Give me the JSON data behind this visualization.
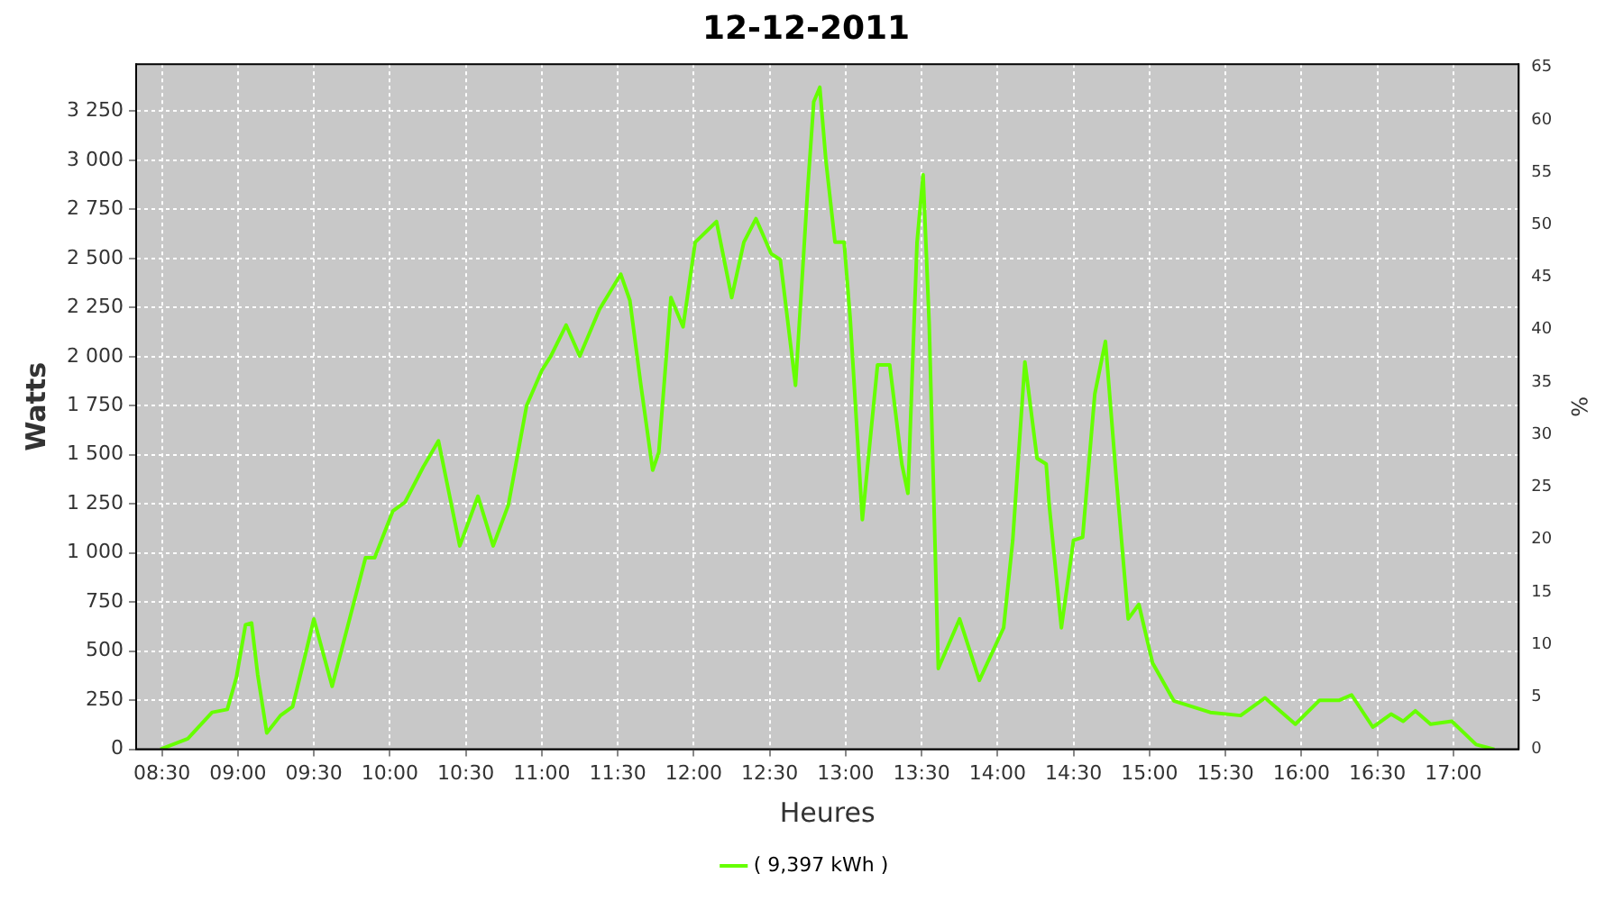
{
  "chart_data": {
    "type": "line",
    "title": "12-12-2011",
    "xlabel": "Heures",
    "ylabel": "Watts",
    "y2label": "%",
    "xlim": [
      8.33,
      17.43
    ],
    "xticks": [
      {
        "value": 8.5,
        "label": "08:30"
      },
      {
        "value": 9,
        "label": "09:00"
      },
      {
        "value": 9.5,
        "label": "09:30"
      },
      {
        "value": 10,
        "label": "10:00"
      },
      {
        "value": 10.5,
        "label": "10:30"
      },
      {
        "value": 11,
        "label": "11:00"
      },
      {
        "value": 11.5,
        "label": "11:30"
      },
      {
        "value": 12,
        "label": "12:00"
      },
      {
        "value": 12.5,
        "label": "12:30"
      },
      {
        "value": 13,
        "label": "13:00"
      },
      {
        "value": 13.5,
        "label": "13:30"
      },
      {
        "value": 14,
        "label": "14:00"
      },
      {
        "value": 14.5,
        "label": "14:30"
      },
      {
        "value": 15,
        "label": "15:00"
      },
      {
        "value": 15.5,
        "label": "15:30"
      },
      {
        "value": 16,
        "label": "16:00"
      },
      {
        "value": 16.5,
        "label": "16:30"
      },
      {
        "value": 17,
        "label": "17:00"
      }
    ],
    "ylim": [
      0,
      3490
    ],
    "yticks": [
      0,
      250,
      500,
      750,
      {
        "value": 1000,
        "label": "1 000"
      },
      {
        "value": 1250,
        "label": "1 250"
      },
      {
        "value": 1500,
        "label": "1 500"
      },
      {
        "value": 1750,
        "label": "1 750"
      },
      {
        "value": 2000,
        "label": "2 000"
      },
      {
        "value": 2250,
        "label": "2 250"
      },
      {
        "value": 2500,
        "label": "2 500"
      },
      {
        "value": 2750,
        "label": "2 750"
      },
      {
        "value": 3000,
        "label": "3 000"
      },
      {
        "value": 3250,
        "label": "3 250"
      }
    ],
    "y2lim": [
      0,
      65.3
    ],
    "y2ticks": [
      0,
      5,
      10,
      15,
      20,
      25,
      30,
      35,
      40,
      45,
      50,
      55,
      60,
      65
    ],
    "grid": true,
    "legend": "bottom",
    "marker": "none",
    "line_style": "solid",
    "series": [
      {
        "name": "( 9,397 kWh )",
        "color": "#66ff00",
        "x": [
          8.49,
          8.67,
          8.83,
          8.93,
          8.99,
          9.05,
          9.09,
          9.13,
          9.19,
          9.28,
          9.36,
          9.44,
          9.5,
          9.62,
          9.74,
          9.84,
          9.9,
          10.02,
          10.1,
          10.22,
          10.32,
          10.46,
          10.58,
          10.68,
          10.78,
          10.9,
          11,
          11.06,
          11.16,
          11.25,
          11.38,
          11.52,
          11.58,
          11.65,
          11.73,
          11.77,
          11.85,
          11.93,
          12.01,
          12.15,
          12.25,
          12.33,
          12.41,
          12.51,
          12.57,
          12.67,
          12.75,
          12.79,
          12.83,
          12.87,
          12.93,
          12.99,
          13.03,
          13.11,
          13.21,
          13.29,
          13.37,
          13.41,
          13.47,
          13.51,
          13.55,
          13.61,
          13.75,
          13.88,
          14.04,
          14.1,
          14.18,
          14.26,
          14.32,
          14.34,
          14.42,
          14.5,
          14.56,
          14.64,
          14.71,
          14.78,
          14.86,
          14.93,
          15.02,
          15.16,
          15.4,
          15.6,
          15.76,
          15.96,
          16.12,
          16.25,
          16.33,
          16.47,
          16.59,
          16.67,
          16.75,
          16.85,
          16.99,
          17.15,
          17.27
        ],
        "values": [
          0,
          54,
          188,
          203,
          366,
          634,
          643,
          381,
          83,
          172,
          217,
          470,
          664,
          321,
          679,
          976,
          976,
          1214,
          1259,
          1438,
          1571,
          1036,
          1289,
          1036,
          1244,
          1750,
          1929,
          2003,
          2161,
          2003,
          2241,
          2420,
          2286,
          1869,
          1422,
          1512,
          2301,
          2152,
          2583,
          2688,
          2301,
          2583,
          2703,
          2524,
          2494,
          1854,
          2851,
          3298,
          3372,
          3000,
          2583,
          2583,
          2196,
          1170,
          1958,
          1958,
          1453,
          1304,
          2583,
          2926,
          2167,
          411,
          664,
          351,
          619,
          1065,
          1973,
          1482,
          1453,
          1244,
          619,
          1065,
          1080,
          1810,
          2078,
          1393,
          664,
          738,
          440,
          247,
          188,
          172,
          262,
          128,
          250,
          250,
          277,
          113,
          179,
          143,
          196,
          128,
          143,
          24,
          0
        ]
      }
    ]
  }
}
